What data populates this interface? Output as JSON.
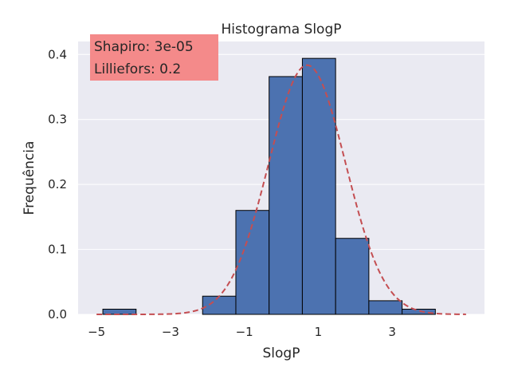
{
  "chart_data": {
    "type": "bar",
    "title": "Histograma SlogP",
    "xlabel": "SlogP",
    "ylabel": "Frequência",
    "xlim": [
      -5.5,
      5.5
    ],
    "ylim": [
      0,
      0.42
    ],
    "xticks": [
      -5,
      -3,
      -1,
      1,
      3
    ],
    "yticks": [
      0.0,
      0.1,
      0.2,
      0.3,
      0.4
    ],
    "xtick_labels": [
      "−5",
      "−3",
      "−1",
      "1",
      "3"
    ],
    "ytick_labels": [
      "0.0",
      "0.1",
      "0.2",
      "0.3",
      "0.4"
    ],
    "bins": [
      {
        "x0": -4.83,
        "x1": -3.93,
        "value": 0.008
      },
      {
        "x0": -3.93,
        "x1": -3.03,
        "value": 0.0
      },
      {
        "x0": -3.03,
        "x1": -2.13,
        "value": 0.0
      },
      {
        "x0": -2.13,
        "x1": -1.23,
        "value": 0.028
      },
      {
        "x0": -1.23,
        "x1": -0.33,
        "value": 0.16
      },
      {
        "x0": -0.33,
        "x1": 0.57,
        "value": 0.366
      },
      {
        "x0": 0.57,
        "x1": 1.47,
        "value": 0.394
      },
      {
        "x0": 1.47,
        "x1": 2.37,
        "value": 0.117
      },
      {
        "x0": 2.37,
        "x1": 3.27,
        "value": 0.021
      },
      {
        "x0": 3.27,
        "x1": 4.17,
        "value": 0.008
      }
    ],
    "normal_curve": {
      "mean": 0.7,
      "std": 1.04,
      "x_range": [
        -5.0,
        5.0
      ],
      "style": "dashed",
      "color": "#c44e52"
    },
    "annotation_lines": [
      "Shapiro: 3e-05",
      "Lilliefors: 0.2"
    ],
    "grid": true,
    "colors": {
      "bar": "#4c72b0",
      "bar_edge": "#000000",
      "background": "#eaeaf2",
      "grid": "#ffffff",
      "annotation_box": "#f48a8a"
    }
  }
}
